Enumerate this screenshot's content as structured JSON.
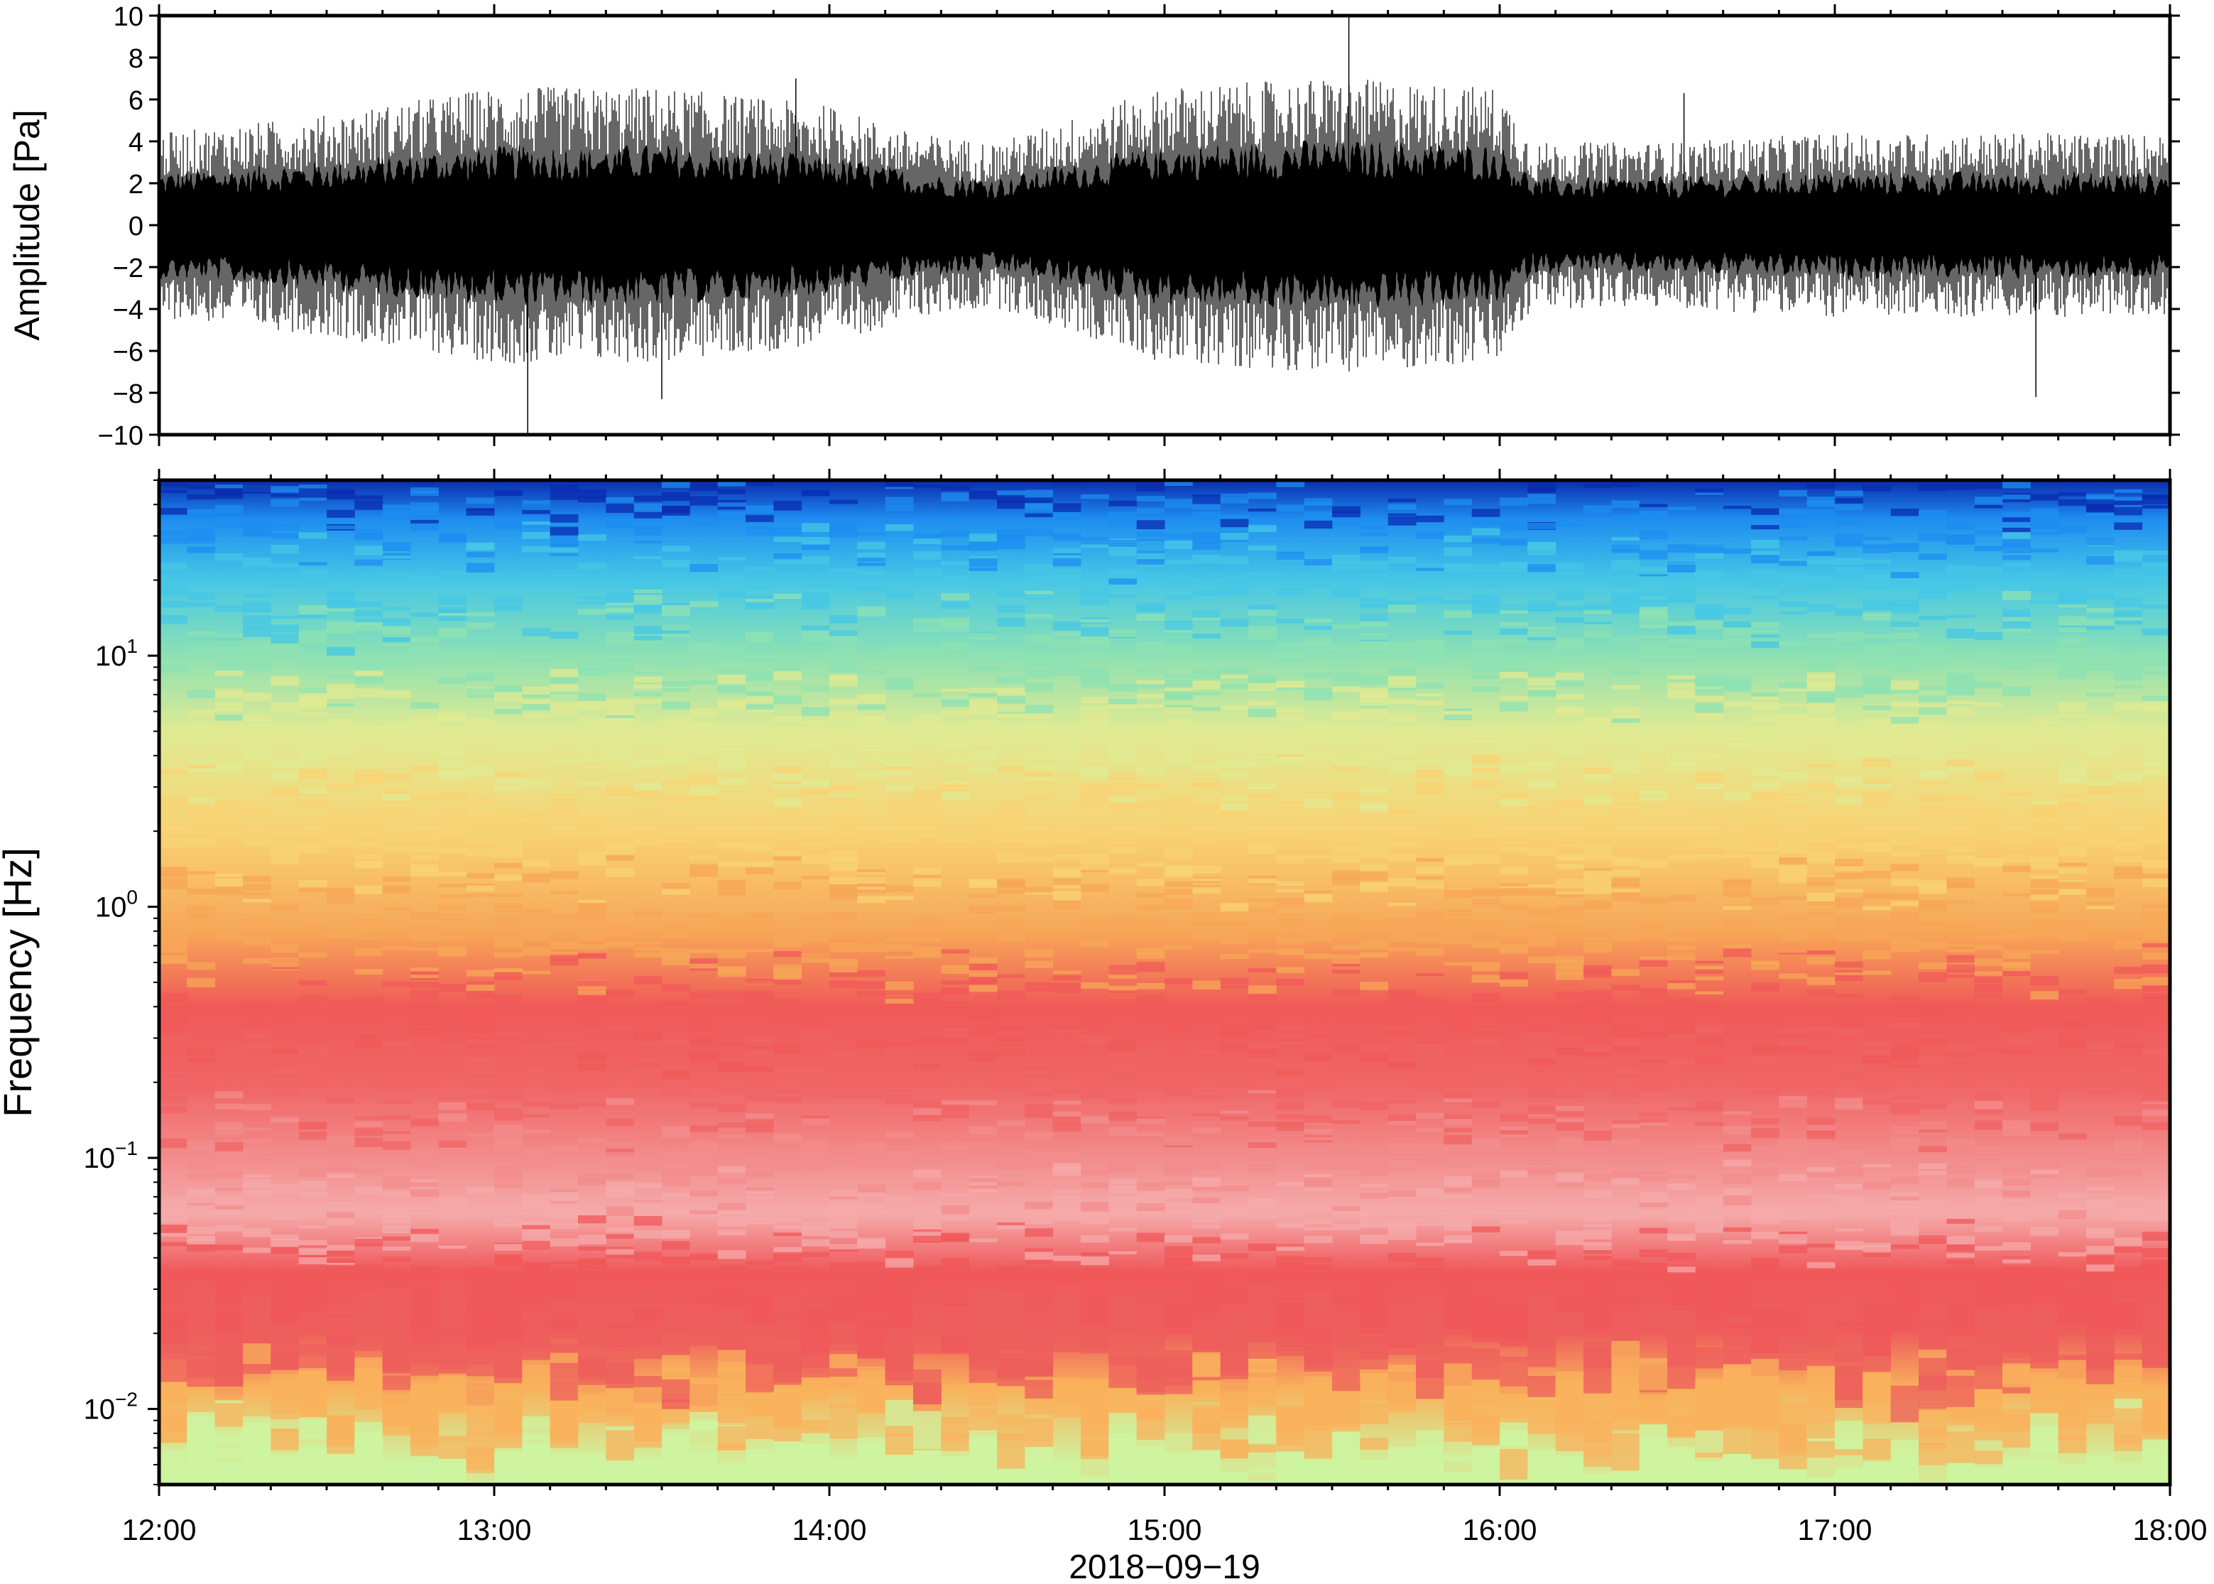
{
  "chart_data": [
    {
      "type": "line",
      "ylabel": "Amplitude [Pa]",
      "ylim": [
        -10,
        10
      ],
      "yticks": [
        -10,
        -8,
        -6,
        -4,
        -2,
        0,
        2,
        4,
        6,
        8,
        10
      ],
      "ytick_labels": [
        "−10",
        "−8",
        "−6",
        "−4",
        "−2",
        "0",
        "2",
        "4",
        "6",
        "8",
        "10"
      ],
      "x_range": [
        "12:00",
        "18:00"
      ],
      "envelope_x_hours": [
        12.0,
        12.5,
        13.0,
        13.5,
        14.0,
        14.25,
        14.5,
        15.0,
        15.5,
        16.0,
        16.1,
        16.5,
        17.0,
        17.5,
        18.0
      ],
      "envelope_amplitude_pa": [
        2.0,
        2.4,
        3.0,
        3.0,
        2.6,
        2.0,
        1.8,
        3.0,
        3.2,
        3.0,
        1.8,
        1.8,
        2.0,
        2.0,
        2.0
      ],
      "notable_peaks": [
        {
          "x_hour": 13.1,
          "y": -10.0
        },
        {
          "x_hour": 13.5,
          "y": -8.3
        },
        {
          "x_hour": 13.9,
          "y": 7.0
        },
        {
          "x_hour": 15.55,
          "y": 10.0
        },
        {
          "x_hour": 16.55,
          "y": 6.3
        },
        {
          "x_hour": 17.6,
          "y": -8.2
        }
      ],
      "grid": false
    },
    {
      "type": "heatmap",
      "ylabel": "Frequency [Hz]",
      "xlabel": "2018−09−19",
      "yscale": "log",
      "ylim_hz": [
        0.005,
        50
      ],
      "yticks": [
        {
          "base": "10",
          "exp": "−2",
          "value": 0.01
        },
        {
          "base": "10",
          "exp": "−1",
          "value": 0.1
        },
        {
          "base": "10",
          "exp": "0",
          "value": 1
        },
        {
          "base": "10",
          "exp": "1",
          "value": 10
        }
      ],
      "xtick_labels": [
        "12:00",
        "13:00",
        "14:00",
        "15:00",
        "16:00",
        "17:00",
        "18:00"
      ],
      "colormap": "rainbow (blue = low power, red/pink = high power)",
      "power_profile": [
        {
          "freq_hz": 0.006,
          "color": "#cdf4a0"
        },
        {
          "freq_hz": 0.012,
          "color": "#f9b25c"
        },
        {
          "freq_hz": 0.02,
          "color": "#ee5f5c"
        },
        {
          "freq_hz": 0.035,
          "color": "#f0585a"
        },
        {
          "freq_hz": 0.06,
          "color": "#f5aaaa"
        },
        {
          "freq_hz": 0.1,
          "color": "#f38c8c"
        },
        {
          "freq_hz": 0.2,
          "color": "#f06464"
        },
        {
          "freq_hz": 0.4,
          "color": "#f05a58"
        },
        {
          "freq_hz": 0.8,
          "color": "#f7a757"
        },
        {
          "freq_hz": 2.0,
          "color": "#f8d374"
        },
        {
          "freq_hz": 5.0,
          "color": "#e0ea92"
        },
        {
          "freq_hz": 10.0,
          "color": "#8de1b3"
        },
        {
          "freq_hz": 20.0,
          "color": "#46c7e6"
        },
        {
          "freq_hz": 35.0,
          "color": "#1e8df0"
        },
        {
          "freq_hz": 50.0,
          "color": "#0a2bb0"
        }
      ]
    }
  ]
}
